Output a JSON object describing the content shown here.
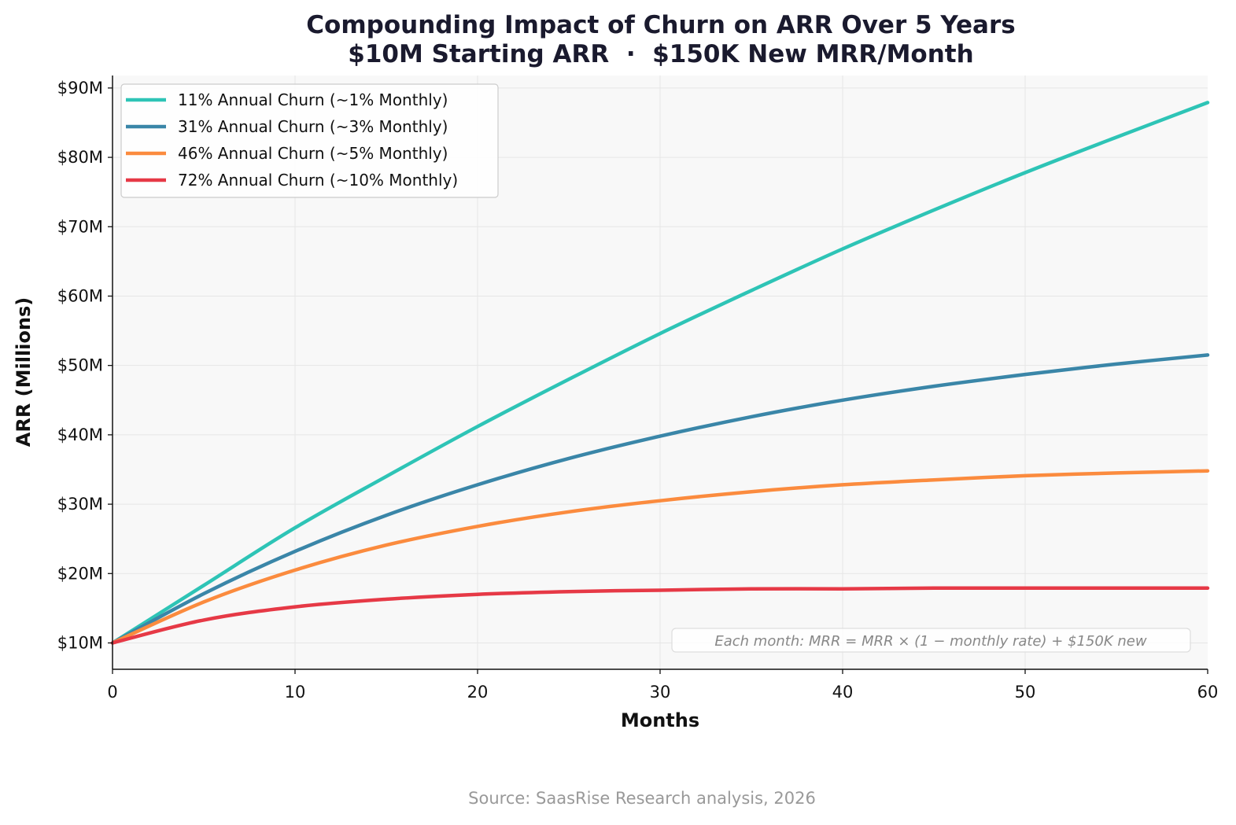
{
  "chart_data": {
    "type": "line",
    "title": "Compounding Impact of Churn on ARR Over 5 Years",
    "subtitle": "$10M Starting ARR  ·  $150K New MRR/Month",
    "xlabel": "Months",
    "ylabel": "ARR (Millions)",
    "xlim": [
      0,
      60
    ],
    "ylim": [
      6.2,
      91.8
    ],
    "x_ticks": [
      0,
      10,
      20,
      30,
      40,
      50,
      60
    ],
    "y_ticks": [
      10,
      20,
      30,
      40,
      50,
      60,
      70,
      80,
      90
    ],
    "y_tick_labels": [
      "$10M",
      "$20M",
      "$30M",
      "$40M",
      "$50M",
      "$60M",
      "$70M",
      "$80M",
      "$90M"
    ],
    "grid": true,
    "legend_position": "top-left",
    "x": [
      0,
      5,
      10,
      15,
      20,
      25,
      30,
      35,
      40,
      45,
      50,
      55,
      60
    ],
    "series": [
      {
        "name": "11% Annual Churn (~1% Monthly)",
        "color": "#2ec4b6",
        "values": [
          10.0,
          18.3,
          26.6,
          34.0,
          41.2,
          48.0,
          54.6,
          60.8,
          66.8,
          72.4,
          77.8,
          82.9,
          87.9
        ]
      },
      {
        "name": "31% Annual Churn (~3% Monthly)",
        "color": "#3a86a8",
        "values": [
          10.0,
          17.1,
          23.2,
          28.4,
          32.8,
          36.6,
          39.8,
          42.6,
          45.0,
          47.0,
          48.7,
          50.2,
          51.5
        ]
      },
      {
        "name": "46% Annual Churn (~5% Monthly)",
        "color": "#fb8b3e",
        "values": [
          10.0,
          15.9,
          20.5,
          24.1,
          26.8,
          28.9,
          30.5,
          31.8,
          32.8,
          33.5,
          34.1,
          34.5,
          34.8
        ]
      },
      {
        "name": "72% Annual Churn (~10% Monthly)",
        "color": "#e63946",
        "values": [
          10.0,
          13.3,
          15.2,
          16.3,
          17.0,
          17.4,
          17.6,
          17.8,
          17.8,
          17.9,
          17.9,
          17.9,
          17.9
        ]
      }
    ],
    "annotation": "Each month: MRR = MRR × (1 − monthly rate) + $150K new"
  },
  "source": "Source: SaasRise Research analysis, 2026"
}
